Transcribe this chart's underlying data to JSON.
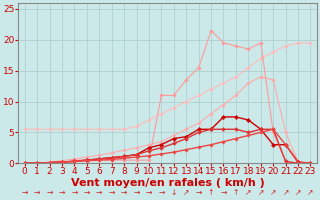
{
  "background_color": "#cce9e9",
  "grid_color": "#aacccc",
  "xlabel": "Vent moyen/en rafales ( km/h )",
  "xlabel_color": "#cc0000",
  "xlabel_fontsize": 8,
  "tick_color": "#cc0000",
  "tick_fontsize": 6.5,
  "xlim": [
    -0.5,
    23.5
  ],
  "ylim": [
    0,
    26
  ],
  "yticks": [
    0,
    5,
    10,
    15,
    20,
    25
  ],
  "xticks": [
    0,
    1,
    2,
    3,
    4,
    5,
    6,
    7,
    8,
    9,
    10,
    11,
    12,
    13,
    14,
    15,
    16,
    17,
    18,
    19,
    20,
    21,
    22,
    23
  ],
  "series": [
    {
      "x": [
        0,
        1,
        2,
        3,
        4,
        5,
        6,
        7,
        8,
        9,
        10,
        11,
        12,
        13,
        14,
        15,
        16,
        17,
        18,
        19,
        20,
        21,
        22,
        23
      ],
      "y": [
        5.5,
        5.5,
        5.5,
        5.5,
        5.5,
        5.5,
        5.5,
        5.5,
        5.5,
        6.0,
        7.0,
        8.0,
        9.0,
        10.0,
        11.0,
        12.0,
        13.0,
        14.0,
        15.5,
        17.0,
        18.0,
        19.0,
        19.5,
        19.5
      ],
      "color": "#ffbbbb",
      "linewidth": 0.8,
      "marker": "D",
      "markersize": 1.8
    },
    {
      "x": [
        0,
        1,
        2,
        3,
        4,
        5,
        6,
        7,
        8,
        9,
        10,
        11,
        12,
        13,
        14,
        15,
        16,
        17,
        18,
        19,
        20,
        21,
        22,
        23
      ],
      "y": [
        0.0,
        0.0,
        0.2,
        0.4,
        0.7,
        1.0,
        1.3,
        1.7,
        2.1,
        2.5,
        3.0,
        3.5,
        4.5,
        5.5,
        6.5,
        8.0,
        9.5,
        11.0,
        13.0,
        14.0,
        13.5,
        5.0,
        0.2,
        0.0
      ],
      "color": "#ffaaaa",
      "linewidth": 0.8,
      "marker": "D",
      "markersize": 1.8
    },
    {
      "x": [
        0,
        1,
        2,
        3,
        4,
        5,
        6,
        7,
        8,
        9,
        10,
        11,
        12,
        13,
        14,
        15,
        16,
        17,
        18,
        19,
        20,
        21,
        22,
        23
      ],
      "y": [
        0.0,
        0.0,
        0.0,
        0.0,
        0.5,
        0.5,
        0.5,
        0.5,
        0.5,
        0.5,
        0.5,
        11.0,
        11.0,
        13.5,
        15.5,
        21.5,
        19.5,
        19.0,
        18.5,
        19.5,
        5.0,
        0.2,
        0.0,
        0.0
      ],
      "color": "#ff9999",
      "linewidth": 0.8,
      "marker": "D",
      "markersize": 1.8
    },
    {
      "x": [
        0,
        1,
        2,
        3,
        4,
        5,
        6,
        7,
        8,
        9,
        10,
        11,
        12,
        13,
        14,
        15,
        16,
        17,
        18,
        19,
        20,
        21,
        22,
        23
      ],
      "y": [
        0.0,
        0.0,
        0.1,
        0.2,
        0.3,
        0.5,
        0.7,
        0.9,
        1.1,
        1.4,
        2.5,
        3.0,
        4.0,
        4.3,
        5.5,
        5.5,
        7.5,
        7.5,
        7.0,
        5.5,
        3.0,
        3.0,
        0.2,
        0.0
      ],
      "color": "#cc0000",
      "linewidth": 1.0,
      "marker": "D",
      "markersize": 2.2
    },
    {
      "x": [
        0,
        1,
        2,
        3,
        4,
        5,
        6,
        7,
        8,
        9,
        10,
        11,
        12,
        13,
        14,
        15,
        16,
        17,
        18,
        19,
        20,
        21,
        22,
        23
      ],
      "y": [
        0.0,
        0.0,
        0.1,
        0.2,
        0.3,
        0.5,
        0.7,
        0.9,
        1.1,
        1.4,
        2.0,
        2.5,
        3.2,
        4.0,
        5.0,
        5.5,
        5.5,
        5.5,
        5.0,
        5.5,
        5.5,
        0.3,
        0.0,
        0.0
      ],
      "color": "#dd3333",
      "linewidth": 1.0,
      "marker": "D",
      "markersize": 2.0
    },
    {
      "x": [
        0,
        1,
        2,
        3,
        4,
        5,
        6,
        7,
        8,
        9,
        10,
        11,
        12,
        13,
        14,
        15,
        16,
        17,
        18,
        19,
        20,
        21,
        22,
        23
      ],
      "y": [
        0.0,
        0.0,
        0.1,
        0.2,
        0.3,
        0.4,
        0.5,
        0.6,
        0.8,
        1.0,
        1.2,
        1.5,
        1.8,
        2.2,
        2.6,
        3.0,
        3.5,
        4.0,
        4.5,
        5.0,
        5.5,
        3.0,
        0.1,
        0.0
      ],
      "color": "#ee4444",
      "linewidth": 1.0,
      "marker": "D",
      "markersize": 1.8
    }
  ],
  "arrow_chars": [
    "→",
    "→",
    "→",
    "→",
    "→",
    "→",
    "→",
    "→",
    "→",
    "→",
    "→",
    "→",
    "↓",
    "↗",
    "→",
    "↑",
    "→",
    "↑",
    "↗",
    "↗",
    "↗",
    "↗",
    "↗",
    "↗"
  ],
  "arrow_color": "#cc2222"
}
